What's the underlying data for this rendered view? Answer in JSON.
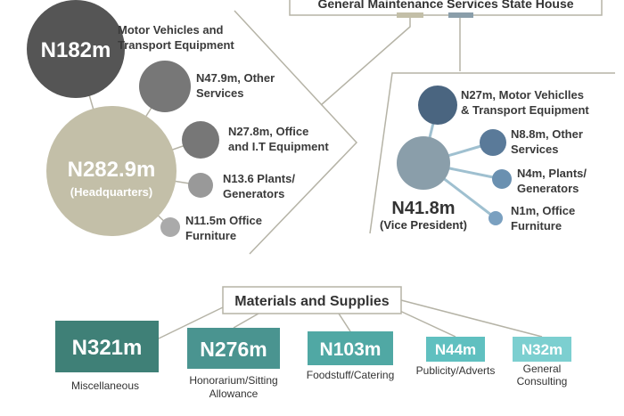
{
  "header": {
    "title": "General Maintenance Services State House"
  },
  "hq": {
    "center": {
      "amount": "N282.9m",
      "label": "(Headquarters)"
    },
    "branches": [
      {
        "amount": "N182m",
        "lines": [
          "Motor Vehicles and",
          "Transport Equipment"
        ]
      },
      {
        "lines": [
          "N47.9m, Other",
          "Services"
        ]
      },
      {
        "lines": [
          "N27.8m, Office",
          "and I.T Equipment"
        ]
      },
      {
        "lines": [
          "N13.6 Plants/",
          "Generators"
        ]
      },
      {
        "lines": [
          "N11.5m Office",
          "Furniture"
        ]
      }
    ]
  },
  "vp": {
    "center": {
      "amount": "N41.8m",
      "label": "(Vice President)"
    },
    "branches": [
      {
        "lines": [
          "N27m, Motor Vehiclles",
          "& Transport Equipment"
        ]
      },
      {
        "lines": [
          "N8.8m, Other",
          "Services"
        ]
      },
      {
        "lines": [
          "N4m, Plants/",
          "Generators"
        ]
      },
      {
        "lines": [
          "N1m, Office",
          "Furniture"
        ]
      }
    ]
  },
  "materials": {
    "title": "Materials and Supplies",
    "items": [
      {
        "amount": "N321m",
        "lines": [
          "Miscellaneous"
        ]
      },
      {
        "amount": "N276m",
        "lines": [
          "Honorarium/Sitting",
          "Allowance"
        ]
      },
      {
        "amount": "N103m",
        "lines": [
          "Foodstuff/Catering"
        ]
      },
      {
        "amount": "N44m",
        "lines": [
          "Publicity/Adverts"
        ]
      },
      {
        "amount": "N32m",
        "lines": [
          "General",
          "Consulting"
        ]
      }
    ]
  }
}
